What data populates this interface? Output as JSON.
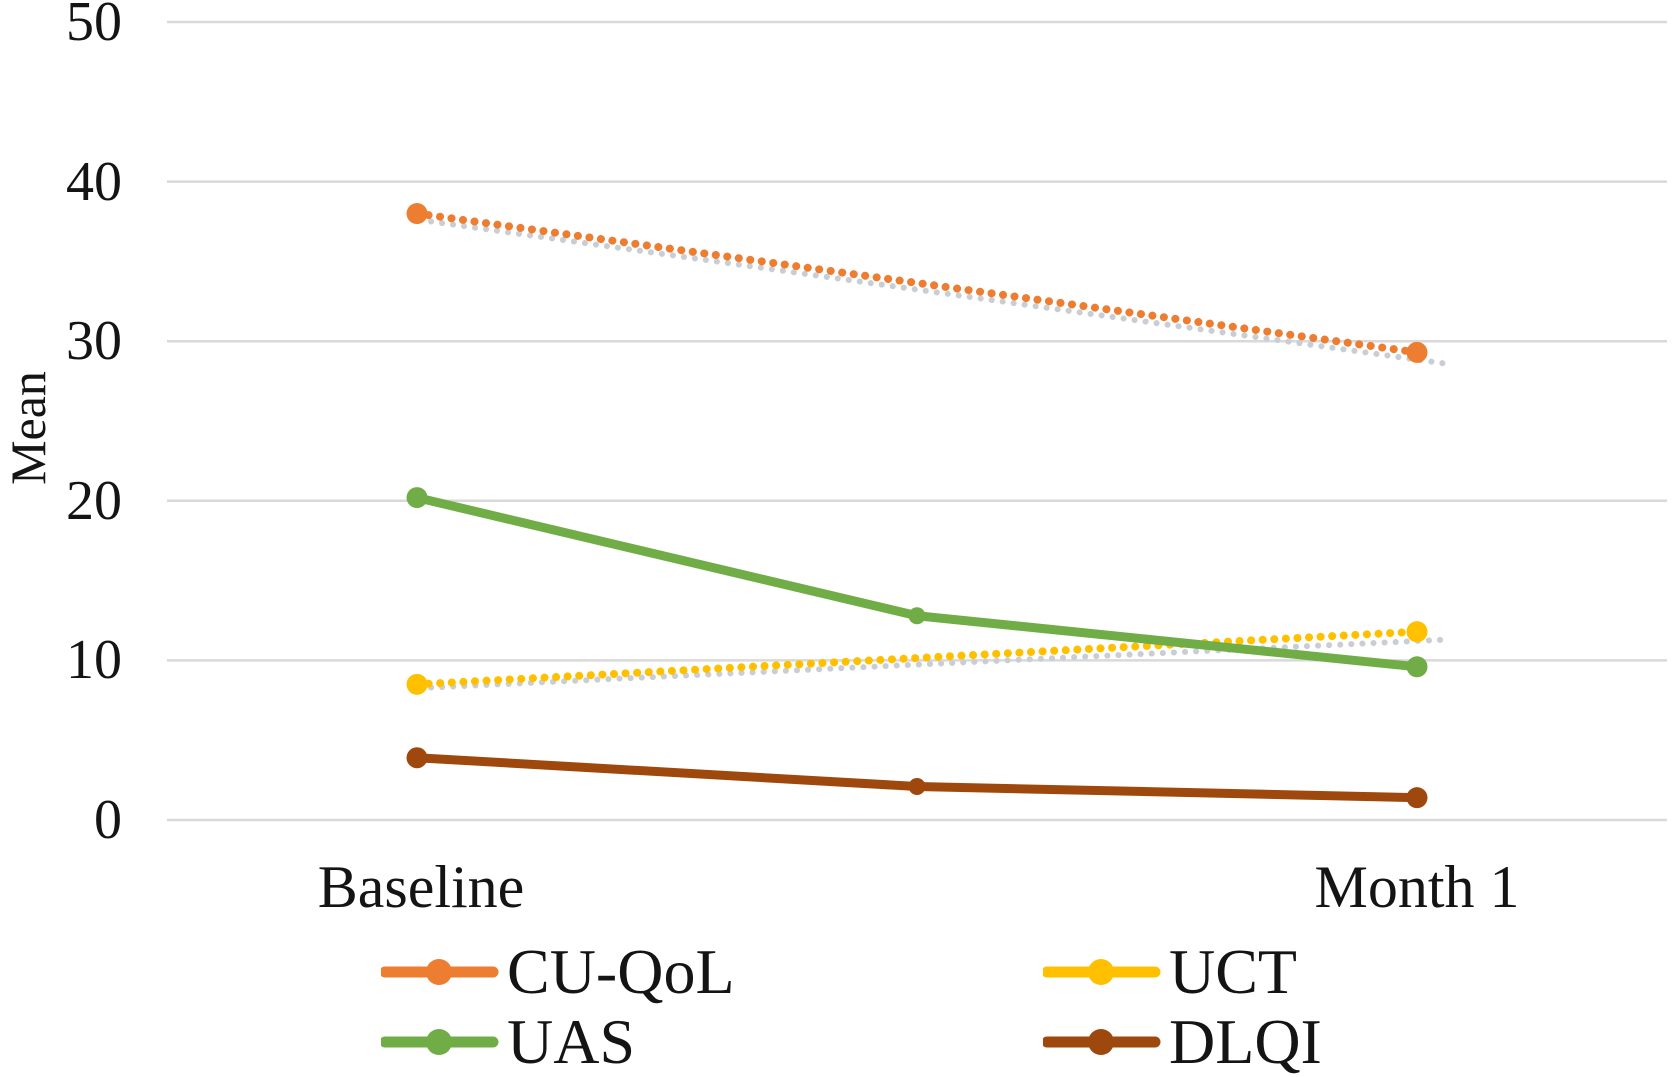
{
  "chart_data": {
    "type": "line",
    "title": "",
    "xlabel": "",
    "ylabel": "Mean",
    "categories": [
      "Baseline",
      "",
      "Month 1"
    ],
    "x_visible_labels": [
      "Baseline",
      "Month 1"
    ],
    "ylim": [
      0,
      50
    ],
    "yticks": [
      "0",
      "10",
      "20",
      "30",
      "40",
      "50"
    ],
    "grid": "horizontal-only",
    "legend_position": "bottom-two-columns",
    "series": [
      {
        "name": "CU-QoL",
        "color": "#ED7D31",
        "line_style": "dotted",
        "values": [
          38.0,
          null,
          29.3
        ],
        "trendline": {
          "style": "dotted",
          "color": "#C9CDD4",
          "start": 37.5,
          "end": 28.6
        }
      },
      {
        "name": "UCT",
        "color": "#FFC000",
        "line_style": "dotted",
        "values": [
          8.5,
          null,
          11.8
        ],
        "trendline": {
          "style": "dotted",
          "color": "#C9CDD4",
          "start": 8.3,
          "end": 11.3
        }
      },
      {
        "name": "UAS",
        "color": "#70AD47",
        "line_style": "solid",
        "values": [
          20.2,
          12.8,
          9.6
        ]
      },
      {
        "name": "DLQI",
        "color": "#9E480D",
        "line_style": "solid",
        "values": [
          3.9,
          2.1,
          1.4
        ]
      }
    ],
    "legend": [
      {
        "label": "CU-QoL",
        "color": "#ED7D31"
      },
      {
        "label": "UCT",
        "color": "#FFC000"
      },
      {
        "label": "UAS",
        "color": "#70AD47"
      },
      {
        "label": "DLQI",
        "color": "#9E480D"
      }
    ]
  },
  "colors": {
    "gridline": "#D9D9D9",
    "text": "#141414",
    "background": "#ffffff"
  }
}
